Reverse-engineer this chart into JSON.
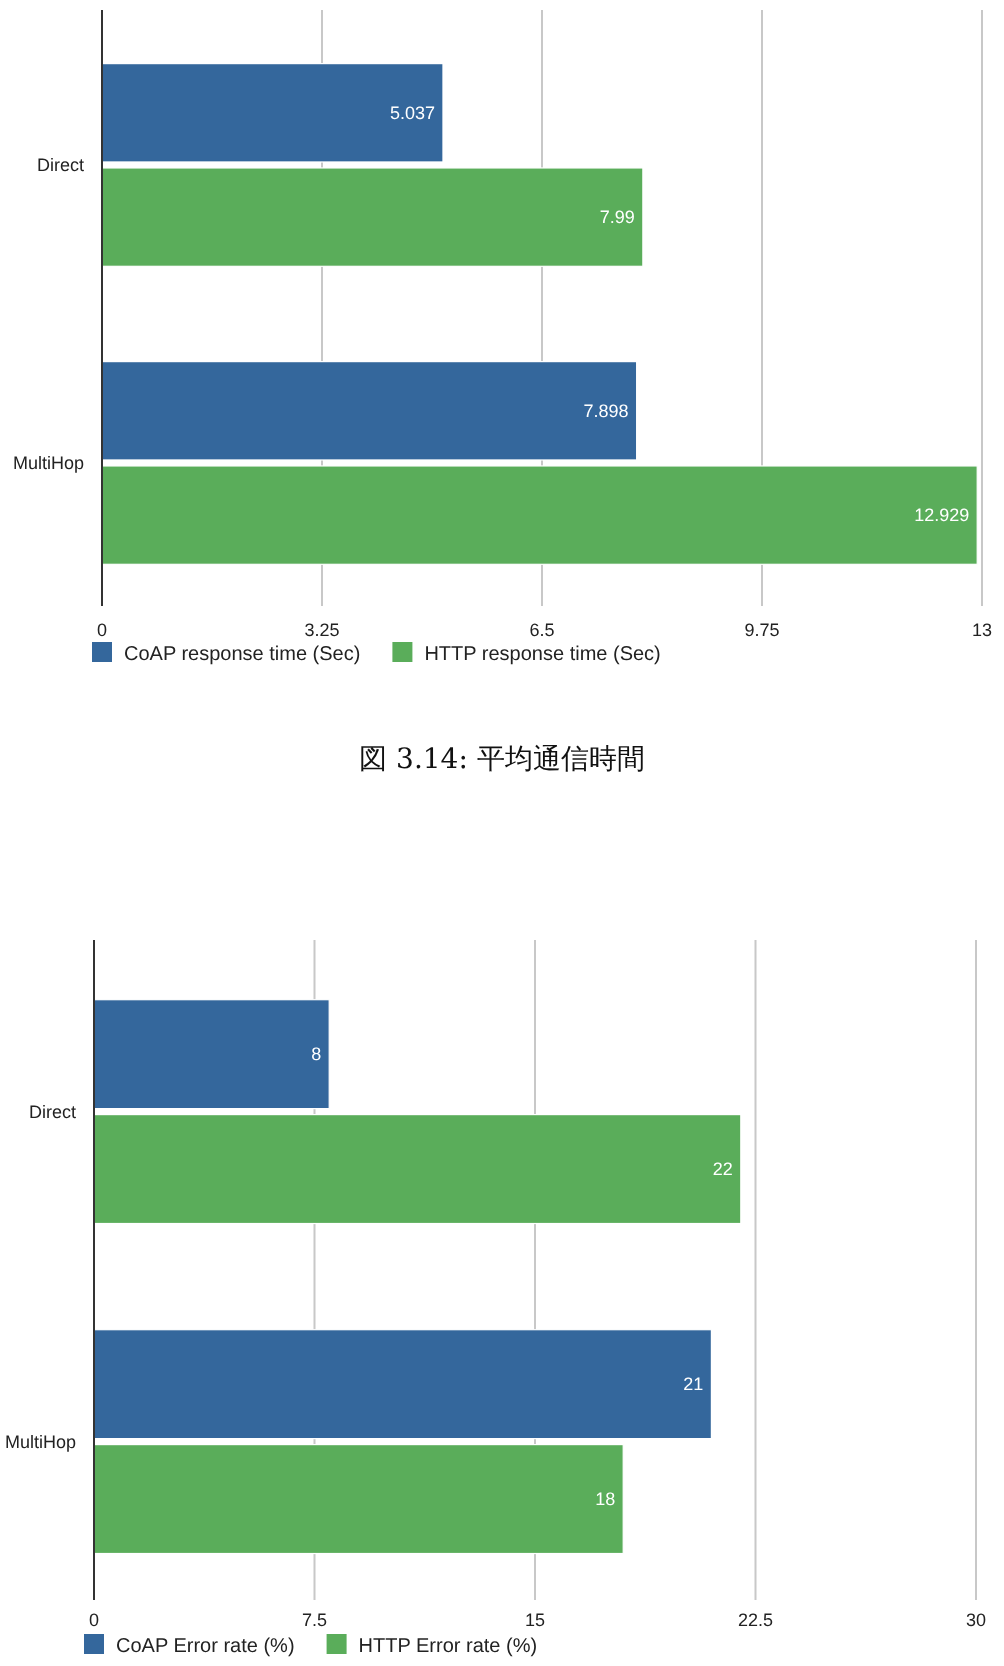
{
  "chart_data": [
    {
      "type": "bar",
      "orientation": "horizontal",
      "categories": [
        "Direct",
        "MultiHop"
      ],
      "series": [
        {
          "name": "CoAP response time (Sec)",
          "color": "#34679c",
          "values": [
            5.037,
            7.898
          ]
        },
        {
          "name": "HTTP response time (Sec)",
          "color": "#5aad5a",
          "values": [
            7.99,
            12.929
          ]
        }
      ],
      "xlim": [
        0,
        13
      ],
      "xticks": [
        0,
        3.25,
        6.5,
        9.75,
        13
      ],
      "grid": "x",
      "legend": "bottom left",
      "data_labels": true,
      "annotations": [
        "図 3.14: 平均通信時間"
      ]
    },
    {
      "type": "bar",
      "orientation": "horizontal",
      "categories": [
        "Direct",
        "MultiHop"
      ],
      "series": [
        {
          "name": "CoAP Error rate (%)",
          "color": "#34679c",
          "values": [
            8,
            21
          ]
        },
        {
          "name": "HTTP Error rate (%)",
          "color": "#5aad5a",
          "values": [
            22,
            18
          ]
        }
      ],
      "xlim": [
        0,
        30
      ],
      "xticks": [
        0,
        7.5,
        15,
        22.5,
        30
      ],
      "grid": "x",
      "legend": "bottom left",
      "data_labels": true
    }
  ]
}
